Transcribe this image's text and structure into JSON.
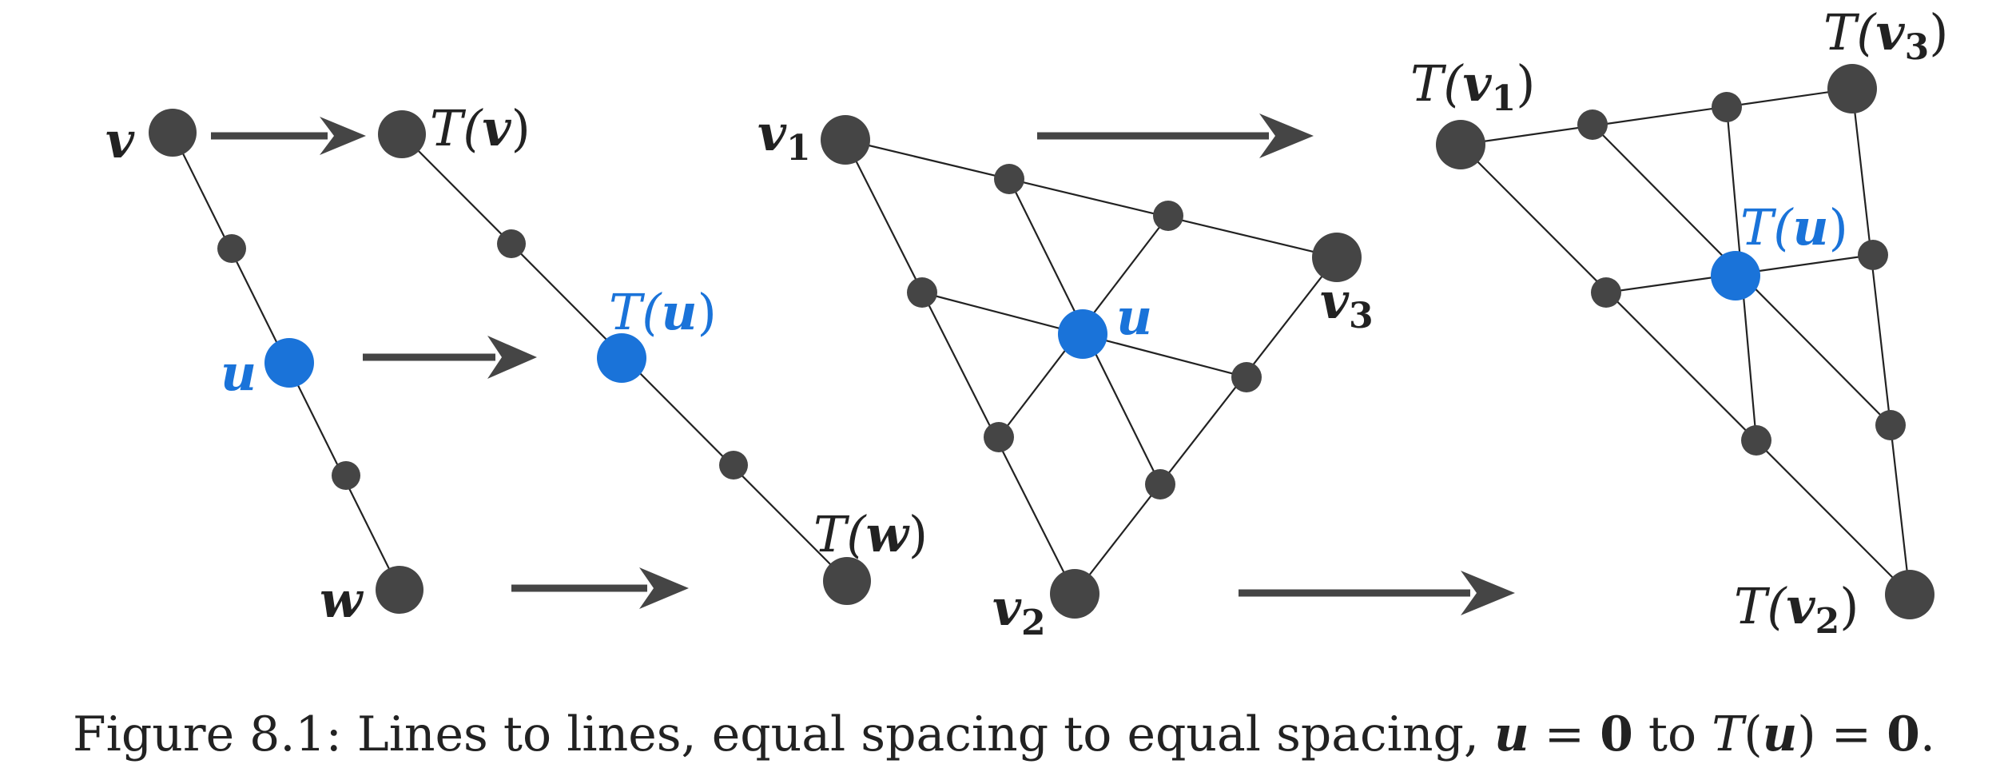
{
  "labels": {
    "v": "v",
    "u": "u",
    "w": "w",
    "Tv_pre": "T(",
    "Tv_var": "v",
    "Tv_post": ")",
    "Tu_pre": "T(",
    "Tu_var": "u",
    "Tu_post": ")",
    "Tw_pre": "T(",
    "Tw_var": "w",
    "Tw_post": ")",
    "v1": "v",
    "v1_sub": "1",
    "v2": "v",
    "v2_sub": "2",
    "v3": "v",
    "v3_sub": "3",
    "u2": "u",
    "Tv1_pre": "T(",
    "Tv1_var": "v",
    "Tv1_sub": "1",
    "Tv1_post": ")",
    "Tv2_pre": "T(",
    "Tv2_var": "v",
    "Tv2_sub": "2",
    "Tv2_post": ")",
    "Tv3_pre": "T(",
    "Tv3_var": "v",
    "Tv3_sub": "3",
    "Tv3_post": ")",
    "Tu2_pre": "T(",
    "Tu2_var": "u",
    "Tu2_post": ")"
  },
  "caption": {
    "prefix": "Figure 8.1: Lines to lines, equal spacing to equal spacing, ",
    "u": "u",
    "eq1": " = ",
    "zero1": "0",
    "to": " to ",
    "T": "T",
    "open": "(",
    "u2": "u",
    "close": ")",
    "eq2": " = ",
    "zero2": "0",
    "period": "."
  },
  "colors": {
    "node": "#454545",
    "center_node": "#1a73d9",
    "edge": "#222222"
  }
}
